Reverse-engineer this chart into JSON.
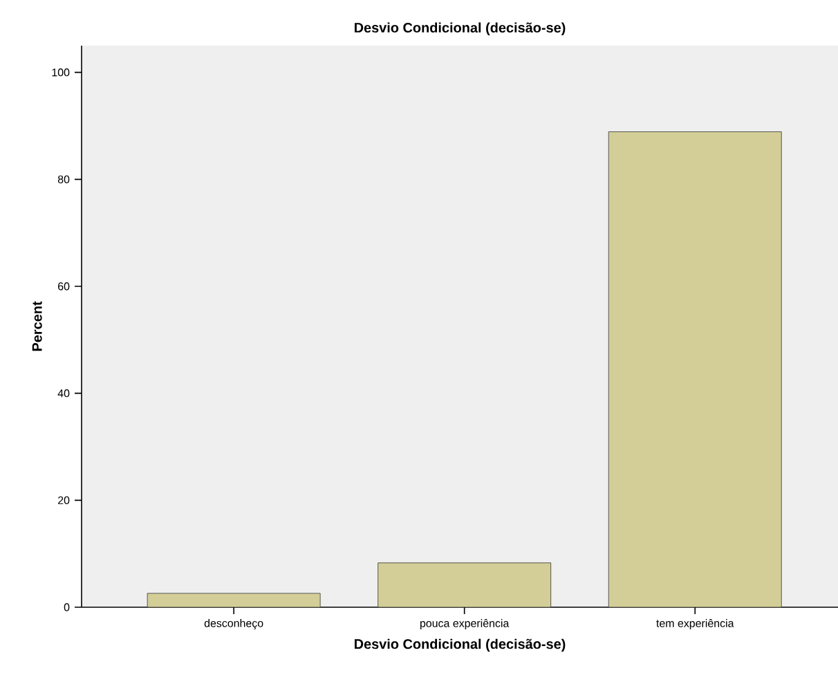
{
  "chart_data": {
    "type": "bar",
    "title": "Desvio Condicional (decisão-se)",
    "xlabel": "Desvio Condicional (decisão-se)",
    "ylabel": "Percent",
    "categories": [
      "desconheço",
      "pouca experiência",
      "tem experiência"
    ],
    "values": [
      2.6,
      8.3,
      88.9
    ],
    "color": "#d3ce97",
    "ylim": [
      0,
      105
    ],
    "yticks": [
      0,
      20,
      40,
      60,
      80,
      100
    ],
    "grid": false
  }
}
